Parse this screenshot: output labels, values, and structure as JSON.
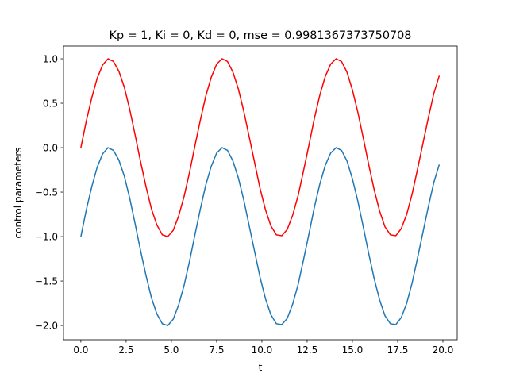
{
  "chart_data": {
    "type": "line",
    "title": "Kp = 1, Ki = 0, Kd = 0, mse = 0.9981367373750708",
    "xlabel": "t",
    "ylabel": "control parameters",
    "x": [
      0,
      0.3,
      0.6,
      0.9,
      1.2,
      1.5,
      1.8,
      2.1,
      2.4,
      2.7,
      3.0,
      3.3,
      3.6,
      3.9,
      4.2,
      4.5,
      4.8,
      5.1,
      5.4,
      5.7,
      6.0,
      6.3,
      6.6,
      6.9,
      7.2,
      7.5,
      7.8,
      8.1,
      8.4,
      8.7,
      9.0,
      9.3,
      9.6,
      9.9,
      10.2,
      10.5,
      10.8,
      11.1,
      11.4,
      11.7,
      12.0,
      12.3,
      12.6,
      12.9,
      13.2,
      13.5,
      13.8,
      14.1,
      14.4,
      14.7,
      15.0,
      15.3,
      15.6,
      15.9,
      16.2,
      16.5,
      16.8,
      17.1,
      17.4,
      17.7,
      18.0,
      18.3,
      18.6,
      18.9,
      19.2,
      19.5,
      19.8
    ],
    "series": [
      {
        "color": "#ff0000",
        "values": [
          0,
          0.3,
          0.56,
          0.78,
          0.93,
          1.0,
          0.97,
          0.86,
          0.68,
          0.43,
          0.14,
          -0.16,
          -0.44,
          -0.69,
          -0.87,
          -0.98,
          -1.0,
          -0.93,
          -0.77,
          -0.55,
          -0.28,
          0.02,
          0.31,
          0.58,
          0.79,
          0.94,
          1.0,
          0.97,
          0.85,
          0.66,
          0.41,
          0.12,
          -0.17,
          -0.46,
          -0.7,
          -0.88,
          -0.98,
          -0.99,
          -0.92,
          -0.76,
          -0.54,
          -0.26,
          0.03,
          0.33,
          0.59,
          0.8,
          0.94,
          1.0,
          0.97,
          0.85,
          0.65,
          0.4,
          0.11,
          -0.19,
          -0.47,
          -0.71,
          -0.89,
          -0.98,
          -0.99,
          -0.91,
          -0.75,
          -0.52,
          -0.24,
          0.05,
          0.34,
          0.61,
          0.81
        ]
      },
      {
        "color": "#1f77b4",
        "values": [
          -1,
          -0.7,
          -0.44,
          -0.22,
          -0.07,
          0.0,
          -0.03,
          -0.14,
          -0.32,
          -0.57,
          -0.86,
          -1.16,
          -1.44,
          -1.69,
          -1.87,
          -1.98,
          -2.0,
          -1.93,
          -1.77,
          -1.55,
          -1.28,
          -0.98,
          -0.69,
          -0.42,
          -0.21,
          -0.06,
          0.0,
          -0.03,
          -0.15,
          -0.34,
          -0.59,
          -0.88,
          -1.17,
          -1.46,
          -1.7,
          -1.88,
          -1.98,
          -1.99,
          -1.92,
          -1.76,
          -1.54,
          -1.26,
          -0.97,
          -0.67,
          -0.41,
          -0.2,
          -0.06,
          0.0,
          -0.03,
          -0.15,
          -0.35,
          -0.6,
          -0.89,
          -1.19,
          -1.47,
          -1.71,
          -1.89,
          -1.98,
          -1.99,
          -1.91,
          -1.75,
          -1.52,
          -1.24,
          -0.95,
          -0.66,
          -0.39,
          -0.19
        ]
      }
    ],
    "xlim": [
      -0.96,
      20.79
    ],
    "ylim": [
      -2.16,
      1.143
    ],
    "xticks": [
      {
        "value": 0,
        "label": "0.0"
      },
      {
        "value": 2.5,
        "label": "2.5"
      },
      {
        "value": 5,
        "label": "5.0"
      },
      {
        "value": 7.5,
        "label": "7.5"
      },
      {
        "value": 10,
        "label": "10.0"
      },
      {
        "value": 12.5,
        "label": "12.5"
      },
      {
        "value": 15,
        "label": "15.0"
      },
      {
        "value": 17.5,
        "label": "17.5"
      },
      {
        "value": 20,
        "label": "20.0"
      }
    ],
    "yticks": [
      {
        "value": -2,
        "label": "−2.0"
      },
      {
        "value": -1.5,
        "label": "−1.5"
      },
      {
        "value": -1,
        "label": "−1.0"
      },
      {
        "value": -0.5,
        "label": "−0.5"
      },
      {
        "value": 0,
        "label": "0.0"
      },
      {
        "value": 0.5,
        "label": "0.5"
      },
      {
        "value": 1,
        "label": "1.0"
      }
    ]
  }
}
